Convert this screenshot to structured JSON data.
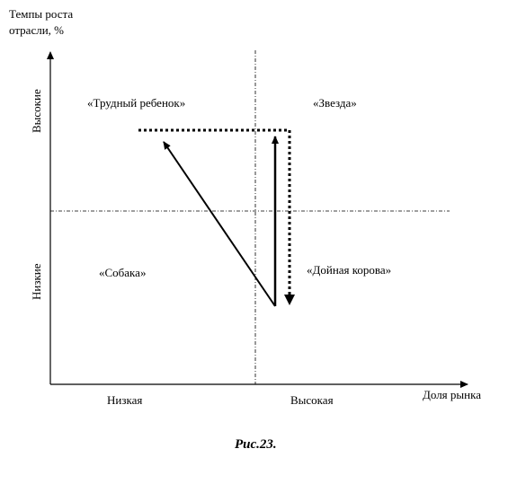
{
  "y_axis": {
    "title_line1": "Темпы роста",
    "title_line2": "отрасли, %",
    "high": "Высокие",
    "low": "Низкие"
  },
  "x_axis": {
    "title": "Доля рынка",
    "low": "Низкая",
    "high": "Высокая"
  },
  "quadrants": {
    "question_mark": "«Трудный ребенок»",
    "star": "«Звезда»",
    "dog": "«Собака»",
    "cash_cow": "«Дойная корова»"
  },
  "caption": "Рис.23."
}
